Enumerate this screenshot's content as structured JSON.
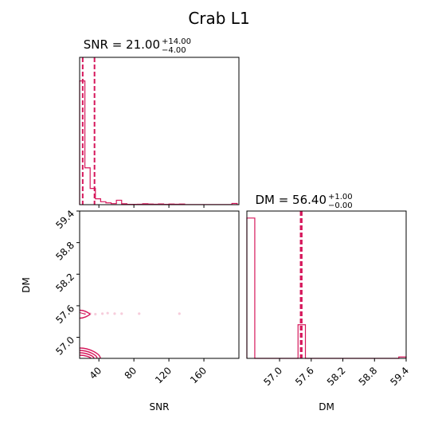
{
  "figure_title": "Crab L1",
  "colors": {
    "accent": "#d6175b",
    "axis": "#000000"
  },
  "chart_data": [
    {
      "panel": "SNR marginal",
      "type": "histogram",
      "title_main": "SNR = 21.00",
      "title_sup": "+14.00",
      "title_sub": "−4.00",
      "xlim": [
        18,
        200
      ],
      "bins": [
        {
          "x0": 18,
          "x1": 24,
          "count": 84
        },
        {
          "x0": 24,
          "x1": 30,
          "count": 25
        },
        {
          "x0": 30,
          "x1": 36,
          "count": 11
        },
        {
          "x0": 36,
          "x1": 42,
          "count": 4
        },
        {
          "x0": 42,
          "x1": 48,
          "count": 2
        },
        {
          "x0": 48,
          "x1": 54,
          "count": 1.2
        },
        {
          "x0": 54,
          "x1": 60,
          "count": 0.7
        },
        {
          "x0": 60,
          "x1": 66,
          "count": 3
        },
        {
          "x0": 66,
          "x1": 72,
          "count": 0.6
        },
        {
          "x0": 72,
          "x1": 78,
          "count": 0.2
        },
        {
          "x0": 78,
          "x1": 84,
          "count": 0.2
        },
        {
          "x0": 84,
          "x1": 90,
          "count": 0.3
        },
        {
          "x0": 90,
          "x1": 96,
          "count": 0.6
        },
        {
          "x0": 96,
          "x1": 102,
          "count": 0.4
        },
        {
          "x0": 102,
          "x1": 108,
          "count": 0.3
        },
        {
          "x0": 108,
          "x1": 114,
          "count": 0.5
        },
        {
          "x0": 114,
          "x1": 120,
          "count": 0.2
        },
        {
          "x0": 120,
          "x1": 126,
          "count": 0.4
        },
        {
          "x0": 126,
          "x1": 132,
          "count": 0.3
        },
        {
          "x0": 132,
          "x1": 138,
          "count": 0.4
        },
        {
          "x0": 138,
          "x1": 144,
          "count": 0.1
        },
        {
          "x0": 144,
          "x1": 150,
          "count": 0.1
        },
        {
          "x0": 150,
          "x1": 156,
          "count": 0.1
        },
        {
          "x0": 156,
          "x1": 162,
          "count": 0.1
        },
        {
          "x0": 162,
          "x1": 168,
          "count": 0.1
        },
        {
          "x0": 168,
          "x1": 174,
          "count": 0.1
        },
        {
          "x0": 174,
          "x1": 180,
          "count": 0.1
        },
        {
          "x0": 180,
          "x1": 186,
          "count": 0.1
        },
        {
          "x0": 186,
          "x1": 192,
          "count": 0.1
        },
        {
          "x0": 192,
          "x1": 198,
          "count": 0.8
        }
      ],
      "ymax": 100,
      "quantile_lines": [
        21.5,
        35.0
      ]
    },
    {
      "panel": "DM marginal",
      "type": "histogram",
      "title_main": "DM = 56.40",
      "title_sup": "+1.00",
      "title_sub": "−0.00",
      "xlim": [
        56.38,
        59.4
      ],
      "xticks": [
        "57.0",
        "57.6",
        "58.2",
        "58.8",
        "59.4"
      ],
      "xtick_values": [
        57.0,
        57.6,
        58.2,
        58.8,
        59.4
      ],
      "xlabel": "DM",
      "bins": [
        {
          "x0": 56.38,
          "x1": 56.53,
          "count": 100
        },
        {
          "x0": 57.35,
          "x1": 57.49,
          "count": 24
        },
        {
          "x0": 59.26,
          "x1": 59.4,
          "count": 1
        }
      ],
      "ymax": 105,
      "quantile_lines": [
        57.4,
        57.42
      ]
    },
    {
      "panel": "SNR vs DM",
      "type": "contour",
      "xlim": [
        18,
        200
      ],
      "ylim": [
        56.6,
        59.4
      ],
      "xticks": [
        "40",
        "80",
        "120",
        "160"
      ],
      "xtick_values": [
        40,
        80,
        120,
        160
      ],
      "yticks": [
        "59.4",
        "58.8",
        "58.2",
        "57.6",
        "57.0"
      ],
      "ytick_values": [
        59.4,
        58.8,
        58.2,
        57.6,
        57.0
      ],
      "xlabel": "SNR",
      "ylabel": "DM",
      "points": [
        {
          "x": 24,
          "y": 57.45
        },
        {
          "x": 30,
          "y": 57.45
        },
        {
          "x": 36,
          "y": 57.44
        },
        {
          "x": 44,
          "y": 57.45
        },
        {
          "x": 50,
          "y": 57.46
        },
        {
          "x": 58,
          "y": 57.45
        },
        {
          "x": 66,
          "y": 57.45
        },
        {
          "x": 86,
          "y": 57.45
        },
        {
          "x": 132,
          "y": 57.45
        }
      ]
    }
  ]
}
